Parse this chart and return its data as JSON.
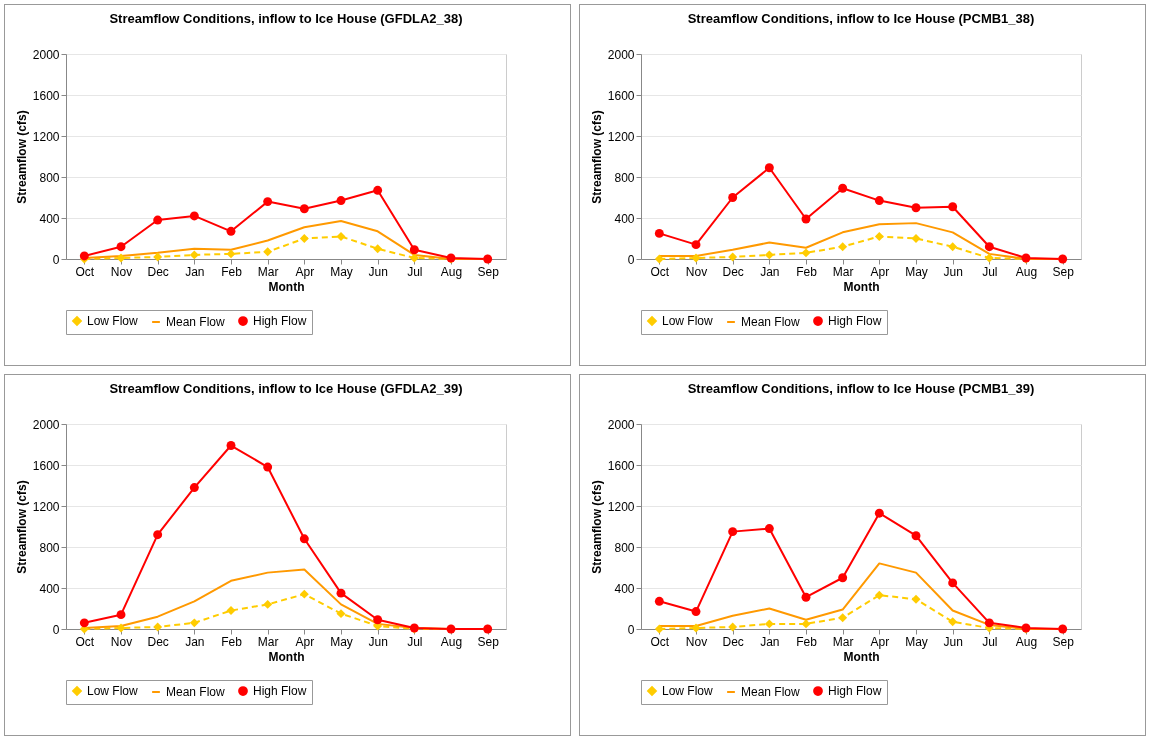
{
  "chart_data": [
    {
      "type": "line",
      "title": "Streamflow Conditions, inflow to Ice House (GFDLA2_38)",
      "xlabel": "Month",
      "ylabel": "Streamflow (cfs)",
      "categories": [
        "Oct",
        "Nov",
        "Dec",
        "Jan",
        "Feb",
        "Mar",
        "Apr",
        "May",
        "Jun",
        "Jul",
        "Aug",
        "Sep"
      ],
      "ylim": [
        0,
        2000
      ],
      "yticks": [
        0,
        400,
        800,
        1200,
        1600,
        2000
      ],
      "grid": "y",
      "legend": "bottom",
      "series": [
        {
          "name": "Low Flow",
          "color": "#ffcc00",
          "marker": "diamond",
          "line_style": "dashed",
          "values": [
            0,
            10,
            20,
            40,
            50,
            70,
            200,
            220,
            100,
            10,
            0,
            0
          ]
        },
        {
          "name": "Mean Flow",
          "color": "#ff9900",
          "marker": "none",
          "line_style": "solid",
          "values": [
            10,
            30,
            60,
            100,
            90,
            180,
            310,
            370,
            270,
            40,
            0,
            0
          ]
        },
        {
          "name": "High Flow",
          "color": "#ff0000",
          "marker": "circle",
          "line_style": "solid",
          "values": [
            30,
            120,
            380,
            420,
            270,
            560,
            490,
            570,
            670,
            90,
            10,
            0
          ]
        }
      ]
    },
    {
      "type": "line",
      "title": "Streamflow Conditions, inflow to Ice House (PCMB1_38)",
      "xlabel": "Month",
      "ylabel": "Streamflow (cfs)",
      "categories": [
        "Oct",
        "Nov",
        "Dec",
        "Jan",
        "Feb",
        "Mar",
        "Apr",
        "May",
        "Jun",
        "Jul",
        "Aug",
        "Sep"
      ],
      "ylim": [
        0,
        2000
      ],
      "yticks": [
        0,
        400,
        800,
        1200,
        1600,
        2000
      ],
      "grid": "y",
      "legend": "bottom",
      "series": [
        {
          "name": "Low Flow",
          "color": "#ffcc00",
          "marker": "diamond",
          "line_style": "dashed",
          "values": [
            0,
            10,
            20,
            40,
            60,
            120,
            220,
            200,
            120,
            10,
            0,
            0
          ]
        },
        {
          "name": "Mean Flow",
          "color": "#ff9900",
          "marker": "none",
          "line_style": "solid",
          "values": [
            30,
            30,
            90,
            160,
            110,
            260,
            340,
            350,
            260,
            50,
            0,
            0
          ]
        },
        {
          "name": "High Flow",
          "color": "#ff0000",
          "marker": "circle",
          "line_style": "solid",
          "values": [
            250,
            140,
            600,
            890,
            390,
            690,
            570,
            500,
            510,
            120,
            10,
            0
          ]
        }
      ]
    },
    {
      "type": "line",
      "title": "Streamflow Conditions, inflow to Ice House (GFDLA2_39)",
      "xlabel": "Month",
      "ylabel": "Streamflow (cfs)",
      "categories": [
        "Oct",
        "Nov",
        "Dec",
        "Jan",
        "Feb",
        "Mar",
        "Apr",
        "May",
        "Jun",
        "Jul",
        "Aug",
        "Sep"
      ],
      "ylim": [
        0,
        2000
      ],
      "yticks": [
        0,
        400,
        800,
        1200,
        1600,
        2000
      ],
      "grid": "y",
      "legend": "bottom",
      "series": [
        {
          "name": "Low Flow",
          "color": "#ffcc00",
          "marker": "diamond",
          "line_style": "dashed",
          "values": [
            0,
            10,
            20,
            60,
            180,
            240,
            340,
            150,
            30,
            0,
            0,
            0
          ]
        },
        {
          "name": "Mean Flow",
          "color": "#ff9900",
          "marker": "none",
          "line_style": "solid",
          "values": [
            10,
            30,
            120,
            270,
            470,
            550,
            580,
            240,
            50,
            10,
            0,
            0
          ]
        },
        {
          "name": "High Flow",
          "color": "#ff0000",
          "marker": "circle",
          "line_style": "solid",
          "values": [
            60,
            140,
            920,
            1380,
            1790,
            1580,
            880,
            350,
            90,
            10,
            0,
            0
          ]
        }
      ]
    },
    {
      "type": "line",
      "title": "Streamflow Conditions, inflow to Ice House (PCMB1_39)",
      "xlabel": "Month",
      "ylabel": "Streamflow (cfs)",
      "categories": [
        "Oct",
        "Nov",
        "Dec",
        "Jan",
        "Feb",
        "Mar",
        "Apr",
        "May",
        "Jun",
        "Jul",
        "Aug",
        "Sep"
      ],
      "ylim": [
        0,
        2000
      ],
      "yticks": [
        0,
        400,
        800,
        1200,
        1600,
        2000
      ],
      "grid": "y",
      "legend": "bottom",
      "series": [
        {
          "name": "Low Flow",
          "color": "#ffcc00",
          "marker": "diamond",
          "line_style": "dashed",
          "values": [
            0,
            10,
            20,
            50,
            50,
            110,
            330,
            290,
            70,
            10,
            0,
            0
          ]
        },
        {
          "name": "Mean Flow",
          "color": "#ff9900",
          "marker": "none",
          "line_style": "solid",
          "values": [
            30,
            30,
            130,
            200,
            90,
            190,
            640,
            550,
            180,
            40,
            0,
            0
          ]
        },
        {
          "name": "High Flow",
          "color": "#ff0000",
          "marker": "circle",
          "line_style": "solid",
          "values": [
            270,
            170,
            950,
            980,
            310,
            500,
            1130,
            910,
            450,
            60,
            10,
            0
          ]
        }
      ]
    }
  ]
}
